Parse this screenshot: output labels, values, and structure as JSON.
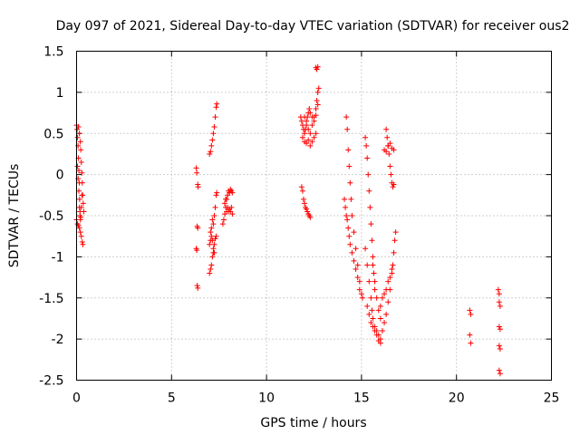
{
  "chart_data": {
    "type": "scatter",
    "title": "Day 097 of 2021, Sidereal Day-to-day VTEC variation (SDTVAR) for receiver ous2",
    "xlabel": "GPS time / hours",
    "ylabel": "SDTVAR / TECUs",
    "xlim": [
      0,
      25
    ],
    "ylim": [
      -2.5,
      1.5
    ],
    "xticks": [
      0,
      5,
      10,
      15,
      20,
      25
    ],
    "xtick_labels": [
      "0",
      "5",
      "10",
      "15",
      "20",
      "25"
    ],
    "yticks": [
      -2.5,
      -2,
      -1.5,
      -1,
      -0.5,
      0,
      0.5,
      1,
      1.5
    ],
    "ytick_labels": [
      "-2.5",
      "-2",
      "-1.5",
      "-1",
      "-0.5",
      "0",
      "0.5",
      "1",
      "1.5"
    ],
    "grid": true,
    "marker": "+",
    "color": "#ff0000",
    "series": [
      {
        "name": "SDTVAR",
        "points": [
          [
            0.0,
            0.6
          ],
          [
            0.03,
            0.55
          ],
          [
            0.05,
            0.45
          ],
          [
            0.08,
            0.35
          ],
          [
            0.1,
            0.2
          ],
          [
            0.12,
            0.05
          ],
          [
            0.14,
            -0.1
          ],
          [
            0.16,
            -0.3
          ],
          [
            0.18,
            -0.45
          ],
          [
            0.2,
            -0.55
          ],
          [
            0.0,
            -0.55
          ],
          [
            0.05,
            -0.6
          ],
          [
            0.1,
            -0.62
          ],
          [
            0.15,
            -0.65
          ],
          [
            0.2,
            -0.7
          ],
          [
            0.25,
            -0.75
          ],
          [
            0.3,
            -0.82
          ],
          [
            0.33,
            -0.85
          ],
          [
            0.1,
            0.58
          ],
          [
            0.15,
            0.5
          ],
          [
            0.2,
            0.4
          ],
          [
            0.22,
            0.3
          ],
          [
            0.25,
            0.15
          ],
          [
            0.28,
            0.02
          ],
          [
            0.3,
            -0.1
          ],
          [
            0.32,
            -0.25
          ],
          [
            0.35,
            -0.35
          ],
          [
            0.38,
            -0.45
          ],
          [
            0.05,
            0.1
          ],
          [
            0.08,
            -0.05
          ],
          [
            0.12,
            -0.2
          ],
          [
            0.15,
            -0.4
          ],
          [
            0.18,
            -0.5
          ],
          [
            0.22,
            -0.52
          ],
          [
            0.25,
            -0.4
          ],
          [
            0.28,
            -0.25
          ],
          [
            6.3,
            0.08
          ],
          [
            6.33,
            0.02
          ],
          [
            6.38,
            -0.12
          ],
          [
            6.4,
            -0.15
          ],
          [
            6.35,
            -0.63
          ],
          [
            6.38,
            -0.65
          ],
          [
            6.3,
            -0.9
          ],
          [
            6.33,
            -0.92
          ],
          [
            6.35,
            -1.35
          ],
          [
            6.38,
            -1.38
          ],
          [
            7.0,
            0.25
          ],
          [
            7.05,
            0.28
          ],
          [
            7.1,
            0.35
          ],
          [
            7.15,
            0.42
          ],
          [
            7.2,
            0.5
          ],
          [
            7.25,
            0.58
          ],
          [
            7.3,
            0.7
          ],
          [
            7.35,
            0.82
          ],
          [
            7.38,
            0.86
          ],
          [
            7.0,
            -0.85
          ],
          [
            7.05,
            -0.8
          ],
          [
            7.1,
            -0.65
          ],
          [
            7.15,
            -0.55
          ],
          [
            7.2,
            -0.6
          ],
          [
            7.25,
            -0.5
          ],
          [
            7.3,
            -0.4
          ],
          [
            7.35,
            -0.25
          ],
          [
            7.38,
            -0.22
          ],
          [
            7.0,
            -1.2
          ],
          [
            7.05,
            -1.15
          ],
          [
            7.1,
            -1.1
          ],
          [
            7.15,
            -1.0
          ],
          [
            7.2,
            -0.95
          ],
          [
            7.25,
            -0.85
          ],
          [
            7.3,
            -0.78
          ],
          [
            7.35,
            -0.75
          ],
          [
            7.05,
            -0.7
          ],
          [
            7.1,
            -0.75
          ],
          [
            7.15,
            -0.8
          ],
          [
            7.2,
            -0.9
          ],
          [
            7.25,
            -0.95
          ],
          [
            7.7,
            -0.6
          ],
          [
            7.75,
            -0.55
          ],
          [
            7.8,
            -0.48
          ],
          [
            7.85,
            -0.4
          ],
          [
            7.9,
            -0.3
          ],
          [
            7.95,
            -0.25
          ],
          [
            8.0,
            -0.2
          ],
          [
            8.05,
            -0.22
          ],
          [
            8.1,
            -0.18
          ],
          [
            8.15,
            -0.2
          ],
          [
            8.2,
            -0.22
          ],
          [
            7.8,
            -0.35
          ],
          [
            7.85,
            -0.3
          ],
          [
            7.9,
            -0.45
          ],
          [
            7.95,
            -0.4
          ],
          [
            8.0,
            -0.45
          ],
          [
            8.05,
            -0.42
          ],
          [
            8.1,
            -0.45
          ],
          [
            8.15,
            -0.4
          ],
          [
            8.2,
            -0.48
          ],
          [
            11.8,
            0.7
          ],
          [
            11.85,
            0.65
          ],
          [
            11.9,
            0.6
          ],
          [
            11.95,
            0.55
          ],
          [
            12.0,
            0.5
          ],
          [
            12.05,
            0.55
          ],
          [
            12.1,
            0.6
          ],
          [
            12.15,
            0.7
          ],
          [
            12.2,
            0.75
          ],
          [
            12.25,
            0.8
          ],
          [
            11.9,
            0.45
          ],
          [
            12.0,
            0.4
          ],
          [
            12.1,
            0.38
          ],
          [
            12.2,
            0.42
          ],
          [
            12.3,
            0.35
          ],
          [
            12.4,
            0.4
          ],
          [
            12.5,
            0.45
          ],
          [
            12.6,
            0.5
          ],
          [
            12.0,
            0.7
          ],
          [
            12.1,
            0.65
          ],
          [
            12.2,
            0.55
          ],
          [
            12.3,
            0.5
          ],
          [
            12.4,
            0.6
          ],
          [
            12.5,
            0.7
          ],
          [
            12.6,
            0.8
          ],
          [
            12.65,
            0.9
          ],
          [
            12.7,
            1.0
          ],
          [
            12.75,
            1.05
          ],
          [
            12.3,
            0.75
          ],
          [
            12.4,
            0.7
          ],
          [
            12.5,
            0.65
          ],
          [
            12.6,
            0.72
          ],
          [
            12.7,
            0.85
          ],
          [
            12.6,
            1.3
          ],
          [
            12.65,
            1.28
          ],
          [
            12.7,
            1.31
          ],
          [
            11.85,
            -0.15
          ],
          [
            11.9,
            -0.2
          ],
          [
            11.95,
            -0.3
          ],
          [
            12.0,
            -0.35
          ],
          [
            12.05,
            -0.4
          ],
          [
            12.1,
            -0.42
          ],
          [
            12.15,
            -0.45
          ],
          [
            12.2,
            -0.48
          ],
          [
            12.25,
            -0.5
          ],
          [
            12.3,
            -0.52
          ],
          [
            14.2,
            0.7
          ],
          [
            14.25,
            0.55
          ],
          [
            14.3,
            0.3
          ],
          [
            14.35,
            0.1
          ],
          [
            14.4,
            -0.1
          ],
          [
            14.45,
            -0.3
          ],
          [
            14.5,
            -0.5
          ],
          [
            14.6,
            -0.7
          ],
          [
            14.7,
            -0.9
          ],
          [
            14.8,
            -1.1
          ],
          [
            14.9,
            -1.3
          ],
          [
            15.0,
            -1.45
          ],
          [
            15.05,
            -1.5
          ],
          [
            14.1,
            -0.3
          ],
          [
            14.15,
            -0.4
          ],
          [
            14.2,
            -0.5
          ],
          [
            14.25,
            -0.55
          ],
          [
            14.3,
            -0.65
          ],
          [
            14.35,
            -0.75
          ],
          [
            14.4,
            -0.85
          ],
          [
            14.5,
            -0.95
          ],
          [
            14.6,
            -1.05
          ],
          [
            14.7,
            -1.15
          ],
          [
            14.8,
            -1.25
          ],
          [
            14.9,
            -1.4
          ],
          [
            15.2,
            0.45
          ],
          [
            15.25,
            0.35
          ],
          [
            15.3,
            0.2
          ],
          [
            15.35,
            0.0
          ],
          [
            15.4,
            -0.2
          ],
          [
            15.45,
            -0.4
          ],
          [
            15.5,
            -0.6
          ],
          [
            15.55,
            -0.8
          ],
          [
            15.6,
            -1.0
          ],
          [
            15.65,
            -1.2
          ],
          [
            15.7,
            -1.4
          ],
          [
            15.2,
            -0.9
          ],
          [
            15.3,
            -1.1
          ],
          [
            15.4,
            -1.3
          ],
          [
            15.5,
            -1.5
          ],
          [
            15.55,
            -1.65
          ],
          [
            15.6,
            -1.75
          ],
          [
            15.7,
            -1.85
          ],
          [
            15.8,
            -1.9
          ],
          [
            15.9,
            -1.95
          ],
          [
            16.0,
            -2.0
          ],
          [
            15.3,
            -1.6
          ],
          [
            15.4,
            -1.7
          ],
          [
            15.5,
            -1.8
          ],
          [
            15.6,
            -1.85
          ],
          [
            15.7,
            -1.9
          ],
          [
            15.8,
            -1.95
          ],
          [
            15.9,
            -2.02
          ],
          [
            16.0,
            -2.05
          ],
          [
            16.1,
            -1.9
          ],
          [
            16.2,
            -1.8
          ],
          [
            16.3,
            -1.7
          ],
          [
            16.4,
            -1.55
          ],
          [
            16.5,
            -1.4
          ],
          [
            16.6,
            -1.2
          ],
          [
            16.65,
            -1.1
          ],
          [
            16.7,
            -0.95
          ],
          [
            16.75,
            -0.8
          ],
          [
            16.8,
            -0.7
          ],
          [
            16.0,
            -1.6
          ],
          [
            16.1,
            -1.5
          ],
          [
            16.2,
            -1.45
          ],
          [
            16.3,
            -1.4
          ],
          [
            16.4,
            -1.3
          ],
          [
            16.5,
            -1.25
          ],
          [
            16.6,
            -1.15
          ],
          [
            15.6,
            -1.1
          ],
          [
            15.7,
            -1.3
          ],
          [
            15.8,
            -1.5
          ],
          [
            15.9,
            -1.65
          ],
          [
            16.0,
            -1.75
          ],
          [
            16.3,
            0.55
          ],
          [
            16.35,
            0.45
          ],
          [
            16.4,
            0.35
          ],
          [
            16.45,
            0.25
          ],
          [
            16.5,
            0.1
          ],
          [
            16.55,
            0.0
          ],
          [
            16.6,
            -0.1
          ],
          [
            16.65,
            -0.15
          ],
          [
            16.7,
            -0.12
          ],
          [
            16.2,
            0.3
          ],
          [
            16.3,
            0.28
          ],
          [
            16.4,
            0.35
          ],
          [
            16.5,
            0.38
          ],
          [
            16.6,
            0.32
          ],
          [
            16.7,
            0.3
          ],
          [
            20.7,
            -1.65
          ],
          [
            20.75,
            -1.7
          ],
          [
            20.7,
            -1.95
          ],
          [
            20.75,
            -2.05
          ],
          [
            22.2,
            -1.4
          ],
          [
            22.25,
            -1.45
          ],
          [
            22.25,
            -1.55
          ],
          [
            22.3,
            -1.6
          ],
          [
            22.25,
            -1.85
          ],
          [
            22.3,
            -1.88
          ],
          [
            22.25,
            -2.08
          ],
          [
            22.3,
            -2.12
          ],
          [
            22.25,
            -2.38
          ],
          [
            22.3,
            -2.42
          ]
        ]
      }
    ]
  }
}
